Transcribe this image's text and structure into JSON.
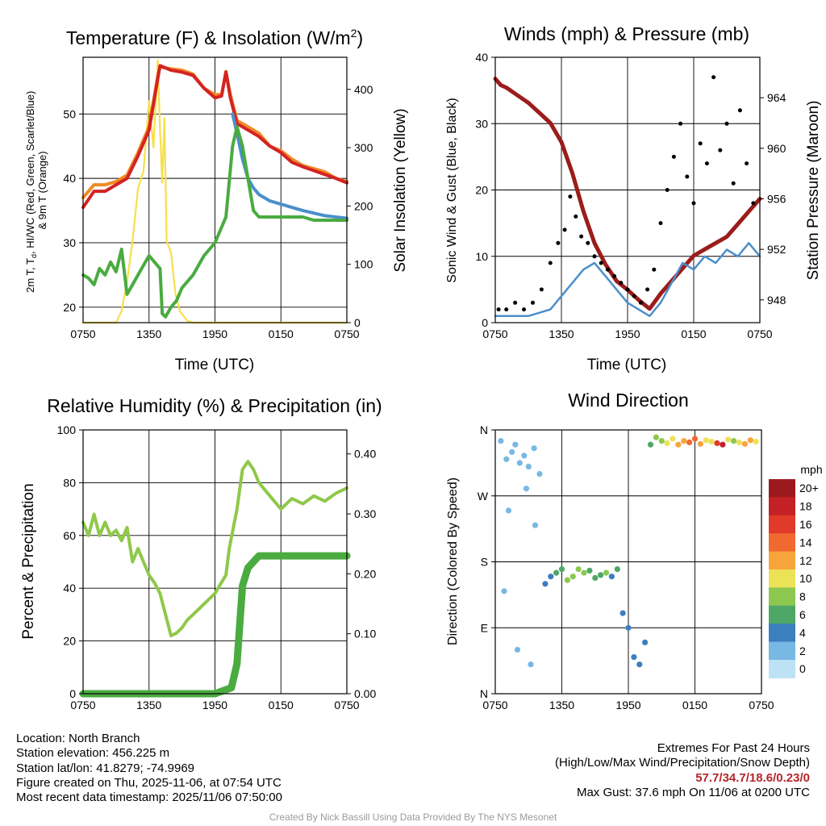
{
  "chart_data": [
    {
      "type": "line",
      "title": "Temperature (F) & Insolation (W/m",
      "title_sup": "2",
      "title_end": ")",
      "xlabel": "Time (UTC)",
      "ylabel_lines": [
        "2m T, T",
        "d",
        ", HI/WC (Red, Green, Scarlet/Blue)",
        "& 9m T (Orange)"
      ],
      "ylabel_right": "Solar Insolation (Yellow)",
      "x_ticks": [
        "0750",
        "1350",
        "1950",
        "0150",
        "0750"
      ],
      "x_range_hours": [
        0,
        24
      ],
      "ylim": [
        17.6,
        58.8
      ],
      "yticks": [
        20,
        30,
        40,
        50
      ],
      "ylim_right": [
        0,
        455
      ],
      "yticks_right": [
        0,
        100,
        200,
        300,
        400
      ],
      "series": [
        {
          "name": "Solar Insolation",
          "axis": "right",
          "color": "#f6e04b",
          "x": [
            0,
            3.0,
            3.5,
            4.0,
            4.5,
            5.0,
            5.5,
            6.0,
            6.4,
            6.8,
            7.0,
            7.2,
            7.4,
            7.6,
            8.0,
            8.4,
            8.8,
            9.2,
            9.5,
            10.0,
            11,
            24
          ],
          "y": [
            0,
            0,
            20,
            70,
            140,
            230,
            260,
            380,
            300,
            450,
            330,
            240,
            350,
            140,
            120,
            50,
            20,
            10,
            3,
            0,
            0,
            0
          ]
        },
        {
          "name": "9m T",
          "axis": "left",
          "color": "#f08a25",
          "x": [
            0,
            1,
            2,
            3,
            4,
            5,
            5.5,
            6,
            6.5,
            6.8,
            7.0,
            8,
            9,
            10,
            11,
            12,
            12.6,
            13.0,
            13.4,
            14,
            15,
            16,
            17,
            18,
            19,
            20,
            21,
            22,
            23,
            24
          ],
          "y": [
            37,
            39,
            39,
            39.5,
            40.5,
            44,
            46,
            48,
            53,
            56,
            57.3,
            57,
            56.8,
            56.2,
            54,
            53,
            53,
            56.6,
            53,
            49,
            48,
            47,
            45,
            44.3,
            43,
            42,
            41.5,
            41,
            40,
            39.5
          ]
        },
        {
          "name": "2m T",
          "axis": "left",
          "color": "#d42323",
          "x": [
            0,
            1,
            2,
            3,
            4,
            5,
            5.5,
            6,
            6.5,
            6.8,
            7.0,
            8,
            9,
            10,
            11,
            12,
            12.6,
            13.0,
            13.4,
            14,
            15,
            16,
            17,
            18,
            19,
            20,
            21,
            22,
            23,
            24
          ],
          "y": [
            35.5,
            38,
            38,
            39,
            40,
            43.5,
            45.5,
            47.5,
            52.5,
            55.5,
            57.5,
            56.8,
            56.5,
            56,
            54,
            52.5,
            52.8,
            56.5,
            52.5,
            48.5,
            47.5,
            46.5,
            45,
            44,
            42.5,
            41.8,
            41.2,
            40.6,
            40,
            39.3
          ]
        },
        {
          "name": "HI/WC",
          "axis": "left",
          "color": "#4b8fcb",
          "x": [
            13.6,
            14,
            14.5,
            15,
            15.5,
            16,
            17,
            18,
            19,
            20,
            21,
            22,
            23,
            24
          ],
          "y": [
            50,
            47,
            43,
            40,
            38.5,
            37.5,
            36.5,
            36,
            35.5,
            35,
            34.6,
            34.2,
            34,
            33.8
          ]
        },
        {
          "name": "Dew Point",
          "axis": "left",
          "color": "#4aab40",
          "x": [
            0,
            0.5,
            1,
            1.5,
            2,
            2.5,
            3,
            3.5,
            4,
            4.5,
            5,
            5.5,
            6,
            6.5,
            7.0,
            7.2,
            7.5,
            8,
            8.5,
            9,
            9.5,
            10,
            11,
            12,
            13,
            13.6,
            14,
            14.5,
            15,
            15.5,
            16,
            17,
            18,
            19,
            20,
            21,
            22,
            23,
            24
          ],
          "y": [
            25,
            24.5,
            23.5,
            26,
            25,
            27,
            25.5,
            29,
            22,
            23.5,
            25,
            26.5,
            28,
            27,
            26,
            19,
            18.5,
            20,
            21,
            23,
            24,
            25,
            28,
            30,
            34,
            45,
            48,
            45,
            40,
            35,
            34,
            34,
            34,
            34,
            34,
            33.5,
            33.5,
            33.5,
            33.5
          ]
        }
      ]
    },
    {
      "type": "line",
      "title": "Winds (mph) & Pressure (mb)",
      "xlabel": "Time (UTC)",
      "ylabel": "Sonic Wind & Gust (Blue, Black)",
      "ylabel_right": "Station Pressure (Maroon)",
      "x_ticks": [
        "0750",
        "1350",
        "1950",
        "0150",
        "0750"
      ],
      "x_range_hours": [
        0,
        24
      ],
      "ylim": [
        0,
        40
      ],
      "yticks": [
        0,
        10,
        20,
        30,
        40
      ],
      "ylim_right": [
        946.2,
        967.2
      ],
      "yticks_right": [
        948,
        952,
        956,
        960,
        964
      ],
      "series": [
        {
          "name": "Station Pressure",
          "axis": "right",
          "color": "#9b1c1c",
          "x": [
            0,
            0.5,
            1,
            2,
            3,
            4,
            5,
            6,
            7,
            8,
            9,
            10,
            11,
            12,
            13,
            14,
            15,
            16,
            17,
            18,
            19,
            20,
            21,
            22,
            23,
            24
          ],
          "y": [
            965.5,
            965,
            964.8,
            964.2,
            963.6,
            962.8,
            962,
            960.5,
            958,
            955,
            952.5,
            950.8,
            949.5,
            948.8,
            948,
            947.3,
            948.5,
            949.5,
            950.5,
            951.5,
            952,
            952.5,
            953,
            954,
            955,
            956
          ]
        },
        {
          "name": "Sonic Wind",
          "axis": "left",
          "color": "#4b8fcb",
          "x": [
            0,
            1,
            2,
            3,
            4,
            5,
            6,
            7,
            8,
            9,
            10,
            11,
            12,
            13,
            14,
            15,
            16,
            17,
            18,
            19,
            20,
            21,
            22,
            23,
            24
          ],
          "y": [
            1,
            1,
            1,
            1,
            1.5,
            2,
            4,
            6,
            8,
            9,
            7,
            5,
            3,
            2,
            1,
            3,
            6,
            9,
            8,
            10,
            9,
            11,
            10,
            12,
            10
          ]
        },
        {
          "name": "Gust",
          "axis": "left",
          "color": "#000000",
          "marker": "dot",
          "x": [
            0.3,
            1,
            1.8,
            2.6,
            3.4,
            4.2,
            5.0,
            5.7,
            6.3,
            6.8,
            7.3,
            7.8,
            8.4,
            9.0,
            9.6,
            10.2,
            10.8,
            11.4,
            12.0,
            12.6,
            13.2,
            13.8,
            14.4,
            15.0,
            15.6,
            16.2,
            16.8,
            17.4,
            18.0,
            18.6,
            19.2,
            19.8,
            20.4,
            21.0,
            21.6,
            22.2,
            22.8,
            23.4
          ],
          "y": [
            2,
            2,
            3,
            2,
            3,
            5,
            9,
            12,
            14,
            19,
            16,
            13,
            12,
            10,
            9,
            8,
            7,
            6,
            5,
            4,
            3,
            5,
            8,
            15,
            20,
            25,
            30,
            22,
            18,
            27,
            24,
            37,
            26,
            30,
            21,
            32,
            24,
            18
          ]
        }
      ]
    },
    {
      "type": "line",
      "title": "Relative Humidity (%) & Precipitation (in)",
      "ylabel": "Percent & Precipitation",
      "x_ticks": [
        "0750",
        "1350",
        "1950",
        "0150",
        "0750"
      ],
      "x_range_hours": [
        0,
        24
      ],
      "ylim": [
        0,
        100
      ],
      "yticks": [
        0,
        20,
        40,
        60,
        80,
        100
      ],
      "ylim_right": [
        0,
        0.44
      ],
      "yticks_right": [
        0.0,
        0.1,
        0.2,
        0.3,
        0.4
      ],
      "series": [
        {
          "name": "Relative Humidity",
          "axis": "left",
          "color": "#8fc84a",
          "x": [
            0,
            0.5,
            1,
            1.5,
            2,
            2.5,
            3,
            3.5,
            4,
            4.5,
            5,
            5.5,
            6,
            6.5,
            7,
            7.5,
            8,
            8.5,
            9,
            9.5,
            10,
            11,
            12,
            13,
            13.3,
            14,
            14.5,
            15,
            15.5,
            16,
            17,
            18,
            19,
            20,
            21,
            22,
            23,
            24
          ],
          "y": [
            65,
            60,
            68,
            60,
            65,
            60,
            62,
            58,
            63,
            50,
            55,
            50,
            45,
            42,
            38,
            30,
            22,
            23,
            25,
            28,
            30,
            34,
            38,
            45,
            55,
            70,
            85,
            88,
            85,
            80,
            75,
            70,
            74,
            72,
            75,
            73,
            76,
            78
          ]
        },
        {
          "name": "Precipitation",
          "axis": "right",
          "color": "#4aab40",
          "x": [
            0,
            2,
            4,
            6,
            8,
            10,
            12,
            13.5,
            14.0,
            14.5,
            15,
            16,
            18,
            20,
            22,
            24
          ],
          "y": [
            0,
            0,
            0,
            0,
            0,
            0,
            0,
            0.01,
            0.05,
            0.18,
            0.21,
            0.23,
            0.23,
            0.23,
            0.23,
            0.23
          ]
        }
      ]
    },
    {
      "type": "scatter",
      "title": "Wind Direction",
      "ylabel": "Direction (Colored By Speed)",
      "x_ticks": [
        "0750",
        "1350",
        "1950",
        "0150",
        "0750"
      ],
      "x_range_hours": [
        0,
        24
      ],
      "ylim_degrees": [
        0,
        360
      ],
      "y_ticks": [
        "N",
        "E",
        "S",
        "W",
        "N"
      ],
      "colorbar": {
        "title": "mph",
        "labels": [
          "20+",
          "18",
          "16",
          "14",
          "12",
          "10",
          "8",
          "6",
          "4",
          "2",
          "0"
        ],
        "colors": [
          "#9c1a1d",
          "#c42126",
          "#e03a2a",
          "#f06a30",
          "#f8a43d",
          "#ece257",
          "#8cc74f",
          "#4ea766",
          "#3c7fbf",
          "#78b8e4",
          "#bde2f6"
        ]
      },
      "points": {
        "x": [
          0.5,
          1.0,
          1.5,
          1.8,
          2.2,
          2.6,
          3.0,
          3.5,
          4.0,
          1.2,
          2.8,
          3.6,
          0.8,
          2.0,
          3.2,
          4.5,
          5.0,
          5.5,
          6.0,
          6.5,
          7.0,
          7.5,
          8.0,
          8.5,
          9.0,
          9.5,
          10.0,
          10.5,
          11.0,
          11.5,
          12.0,
          12.5,
          13.0,
          13.5,
          14.0,
          14.5,
          15.0,
          15.5,
          16.0,
          16.5,
          17.0,
          17.5,
          18.0,
          18.5,
          19.0,
          19.5,
          20.0,
          20.5,
          21.0,
          21.5,
          22.0,
          22.5,
          23.0,
          23.5
        ],
        "deg": [
          345,
          320,
          330,
          340,
          315,
          325,
          310,
          335,
          300,
          250,
          280,
          230,
          140,
          60,
          40,
          150,
          160,
          165,
          170,
          155,
          160,
          170,
          165,
          168,
          158,
          162,
          165,
          160,
          170,
          110,
          90,
          50,
          40,
          70,
          340,
          350,
          345,
          342,
          348,
          340,
          345,
          343,
          348,
          341,
          346,
          344,
          342,
          340,
          347,
          345,
          343,
          341,
          346,
          344
        ],
        "speed": [
          1,
          1,
          2,
          1,
          2,
          1,
          2,
          1,
          2,
          1,
          2,
          1,
          2,
          1,
          2,
          4,
          4,
          5,
          6,
          7,
          8,
          8,
          7,
          6,
          5,
          6,
          7,
          4,
          5,
          4,
          3,
          4,
          3,
          4,
          6,
          7,
          8,
          9,
          10,
          11,
          12,
          13,
          14,
          11,
          10,
          9,
          16,
          18,
          9,
          8,
          10,
          12,
          11,
          9
        ]
      }
    }
  ],
  "info": {
    "location": "Location: North Branch",
    "elevation": "Station elevation: 456.225 m",
    "latlon": "Station lat/lon: 41.8279; -74.9969",
    "created": "Figure created on Thu, 2025-11-06, at 07:54 UTC",
    "recent": "Most recent data timestamp: 2025/11/06 07:50:00"
  },
  "extremes": {
    "title": "Extremes For Past 24 Hours",
    "subtitle": "(High/Low/Max Wind/Precipitation/Snow Depth)",
    "values": "57.7/34.7/18.6/0.23/0",
    "max_gust": "Max Gust: 37.6 mph On 11/06 at 0200 UTC"
  },
  "credit": "Created By Nick Bassill Using Data Provided By The NYS Mesonet"
}
